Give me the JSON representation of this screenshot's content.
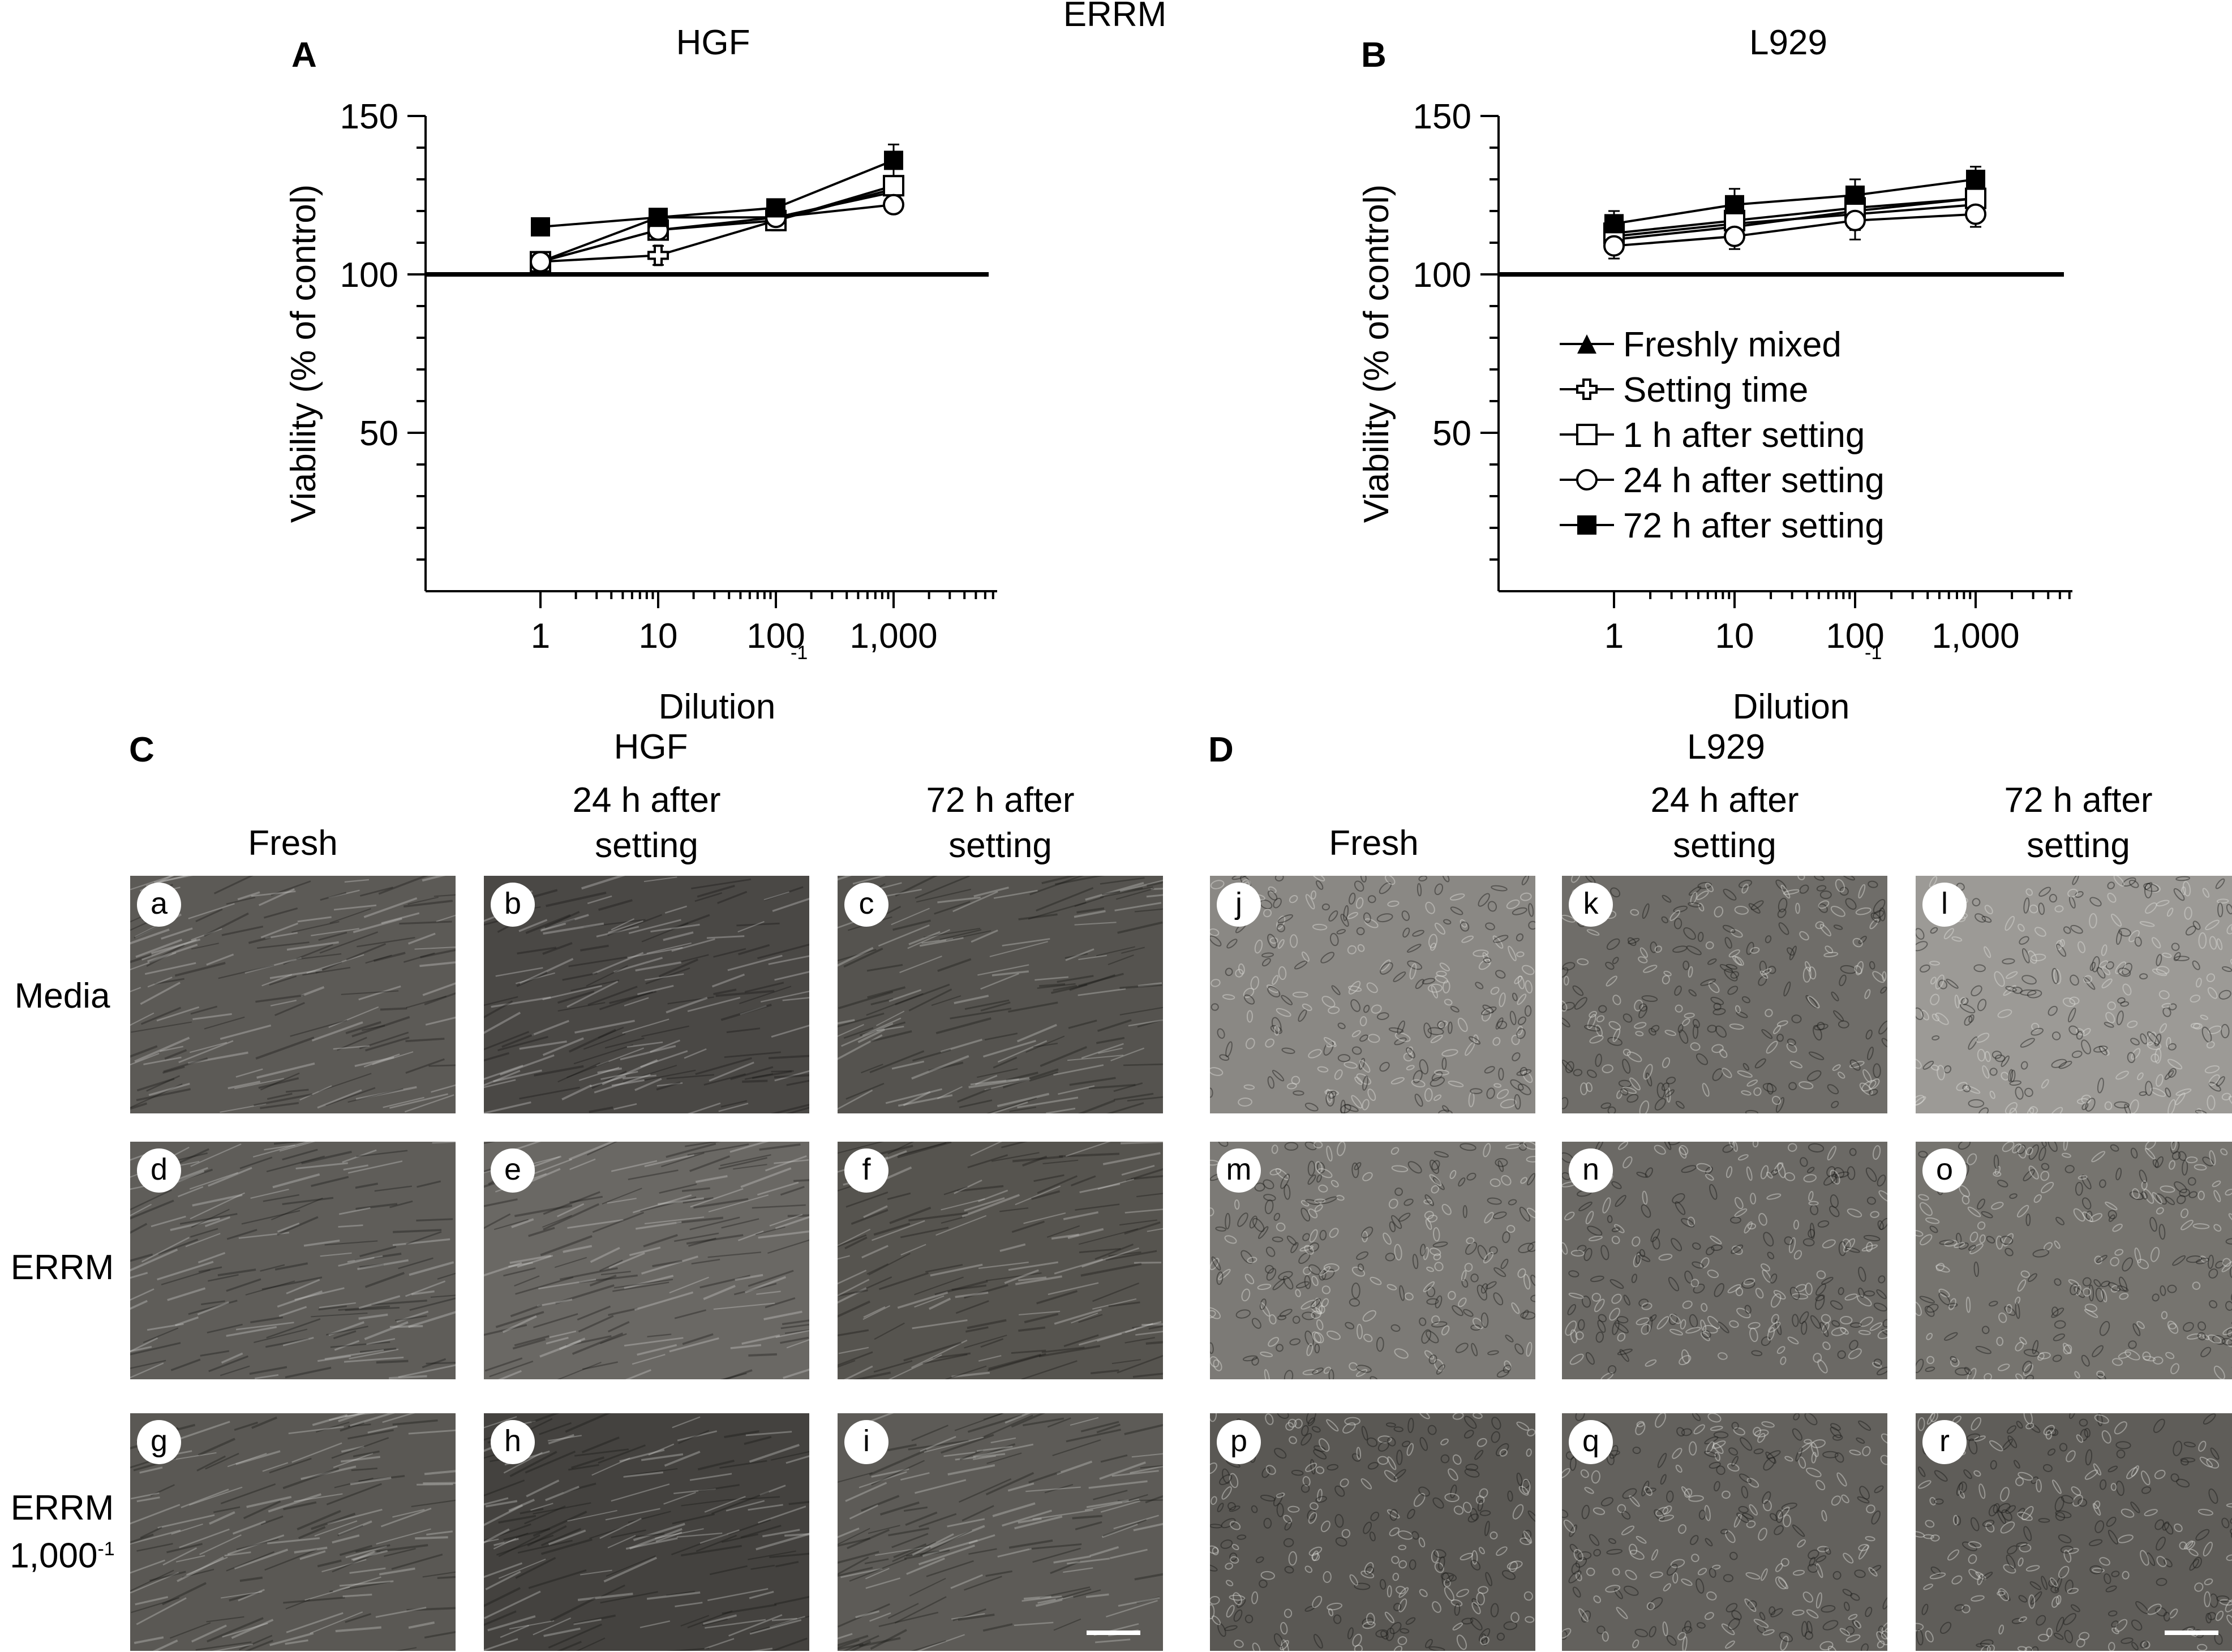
{
  "figure": {
    "title": "ERRM",
    "panel_a": {
      "letter": "A",
      "title": "HGF"
    },
    "panel_b": {
      "letter": "B",
      "title": "L929"
    },
    "panel_c": {
      "letter": "C",
      "title": "HGF"
    },
    "panel_d": {
      "letter": "D",
      "title": "L929"
    },
    "column_headers": {
      "fresh": "Fresh",
      "h24_line1": "24 h after",
      "h24_line2": "setting",
      "h72_line1": "72 h after",
      "h72_line2": "setting"
    },
    "row_labels": {
      "media": "Media",
      "errm": "ERRM",
      "dilute_line1": "ERRM",
      "dilute_base": "1,000",
      "dilute_exp": "-1"
    },
    "micrographs": [
      {
        "label": "a",
        "tone": "#5c5a56",
        "cell": "fibro"
      },
      {
        "label": "b",
        "tone": "#4a4845",
        "cell": "fibro"
      },
      {
        "label": "c",
        "tone": "#55534f",
        "cell": "fibro"
      },
      {
        "label": "d",
        "tone": "#5f5d59",
        "cell": "fibro"
      },
      {
        "label": "e",
        "tone": "#6a6864",
        "cell": "fibro"
      },
      {
        "label": "f",
        "tone": "#56544f",
        "cell": "fibro"
      },
      {
        "label": "g",
        "tone": "#5a5854",
        "cell": "fibro"
      },
      {
        "label": "h",
        "tone": "#44423f",
        "cell": "fibro"
      },
      {
        "label": "i",
        "tone": "#5d5b57",
        "cell": "fibro"
      },
      {
        "label": "j",
        "tone": "#8a8884",
        "cell": "epi"
      },
      {
        "label": "k",
        "tone": "#6f6d69",
        "cell": "epi"
      },
      {
        "label": "l",
        "tone": "#9c9a96",
        "cell": "epi"
      },
      {
        "label": "m",
        "tone": "#7c7a76",
        "cell": "epi"
      },
      {
        "label": "n",
        "tone": "#6b6965",
        "cell": "epi"
      },
      {
        "label": "o",
        "tone": "#76746f",
        "cell": "epi"
      },
      {
        "label": "p",
        "tone": "#5a5854",
        "cell": "epi"
      },
      {
        "label": "q",
        "tone": "#63615d",
        "cell": "epi"
      },
      {
        "label": "r",
        "tone": "#5f5d59",
        "cell": "epi"
      }
    ]
  },
  "chart_data": [
    {
      "type": "line",
      "title": "HGF",
      "xlabel": "Dilution",
      "xlabel_sup": "-1",
      "ylabel": "Viability (% of control)",
      "xscale": "log",
      "x": [
        1,
        10,
        100,
        1000
      ],
      "xticklabels": [
        "1",
        "10",
        "100",
        "1,000"
      ],
      "ylim": [
        0,
        150
      ],
      "yticks": [
        50,
        100,
        150
      ],
      "reference_line": 100,
      "grid": false,
      "series": [
        {
          "name": "Freshly mixed",
          "marker": "triangle-filled",
          "values": [
            104,
            118,
            118,
            126
          ],
          "err": [
            2,
            2,
            2,
            3
          ]
        },
        {
          "name": "Setting time",
          "marker": "cross-open",
          "values": [
            104,
            106,
            117,
            127
          ],
          "err": [
            2,
            3,
            2,
            3
          ]
        },
        {
          "name": "1 h after setting",
          "marker": "square-open",
          "values": [
            104,
            114,
            117,
            128
          ],
          "err": [
            2,
            2,
            2,
            3
          ]
        },
        {
          "name": "24 h after setting",
          "marker": "circle-open",
          "values": [
            104,
            114,
            118,
            122
          ],
          "err": [
            2,
            2,
            2,
            2
          ]
        },
        {
          "name": "72 h after setting",
          "marker": "square-filled",
          "values": [
            115,
            118,
            121,
            136
          ],
          "err": [
            2,
            2,
            2,
            5
          ]
        }
      ]
    },
    {
      "type": "line",
      "title": "L929",
      "xlabel": "Dilution",
      "xlabel_sup": "-1",
      "ylabel": "Viability (% of control)",
      "xscale": "log",
      "x": [
        1,
        10,
        100,
        1000
      ],
      "xticklabels": [
        "1",
        "10",
        "100",
        "1,000"
      ],
      "ylim": [
        0,
        150
      ],
      "yticks": [
        50,
        100,
        150
      ],
      "reference_line": 100,
      "grid": false,
      "legend_position": "center-right",
      "series": [
        {
          "name": "Freshly mixed",
          "marker": "triangle-filled",
          "values": [
            112,
            116,
            119,
            122
          ],
          "err": [
            4,
            4,
            5,
            4
          ]
        },
        {
          "name": "Setting time",
          "marker": "cross-open",
          "values": [
            111,
            115,
            120,
            124
          ],
          "err": [
            4,
            4,
            5,
            4
          ]
        },
        {
          "name": "1 h after setting",
          "marker": "square-open",
          "values": [
            113,
            117,
            121,
            124
          ],
          "err": [
            4,
            4,
            5,
            4
          ]
        },
        {
          "name": "24 h after setting",
          "marker": "circle-open",
          "values": [
            109,
            112,
            117,
            119
          ],
          "err": [
            4,
            4,
            6,
            4
          ]
        },
        {
          "name": "72 h after setting",
          "marker": "square-filled",
          "values": [
            116,
            122,
            125,
            130
          ],
          "err": [
            4,
            5,
            5,
            4
          ]
        }
      ]
    }
  ]
}
